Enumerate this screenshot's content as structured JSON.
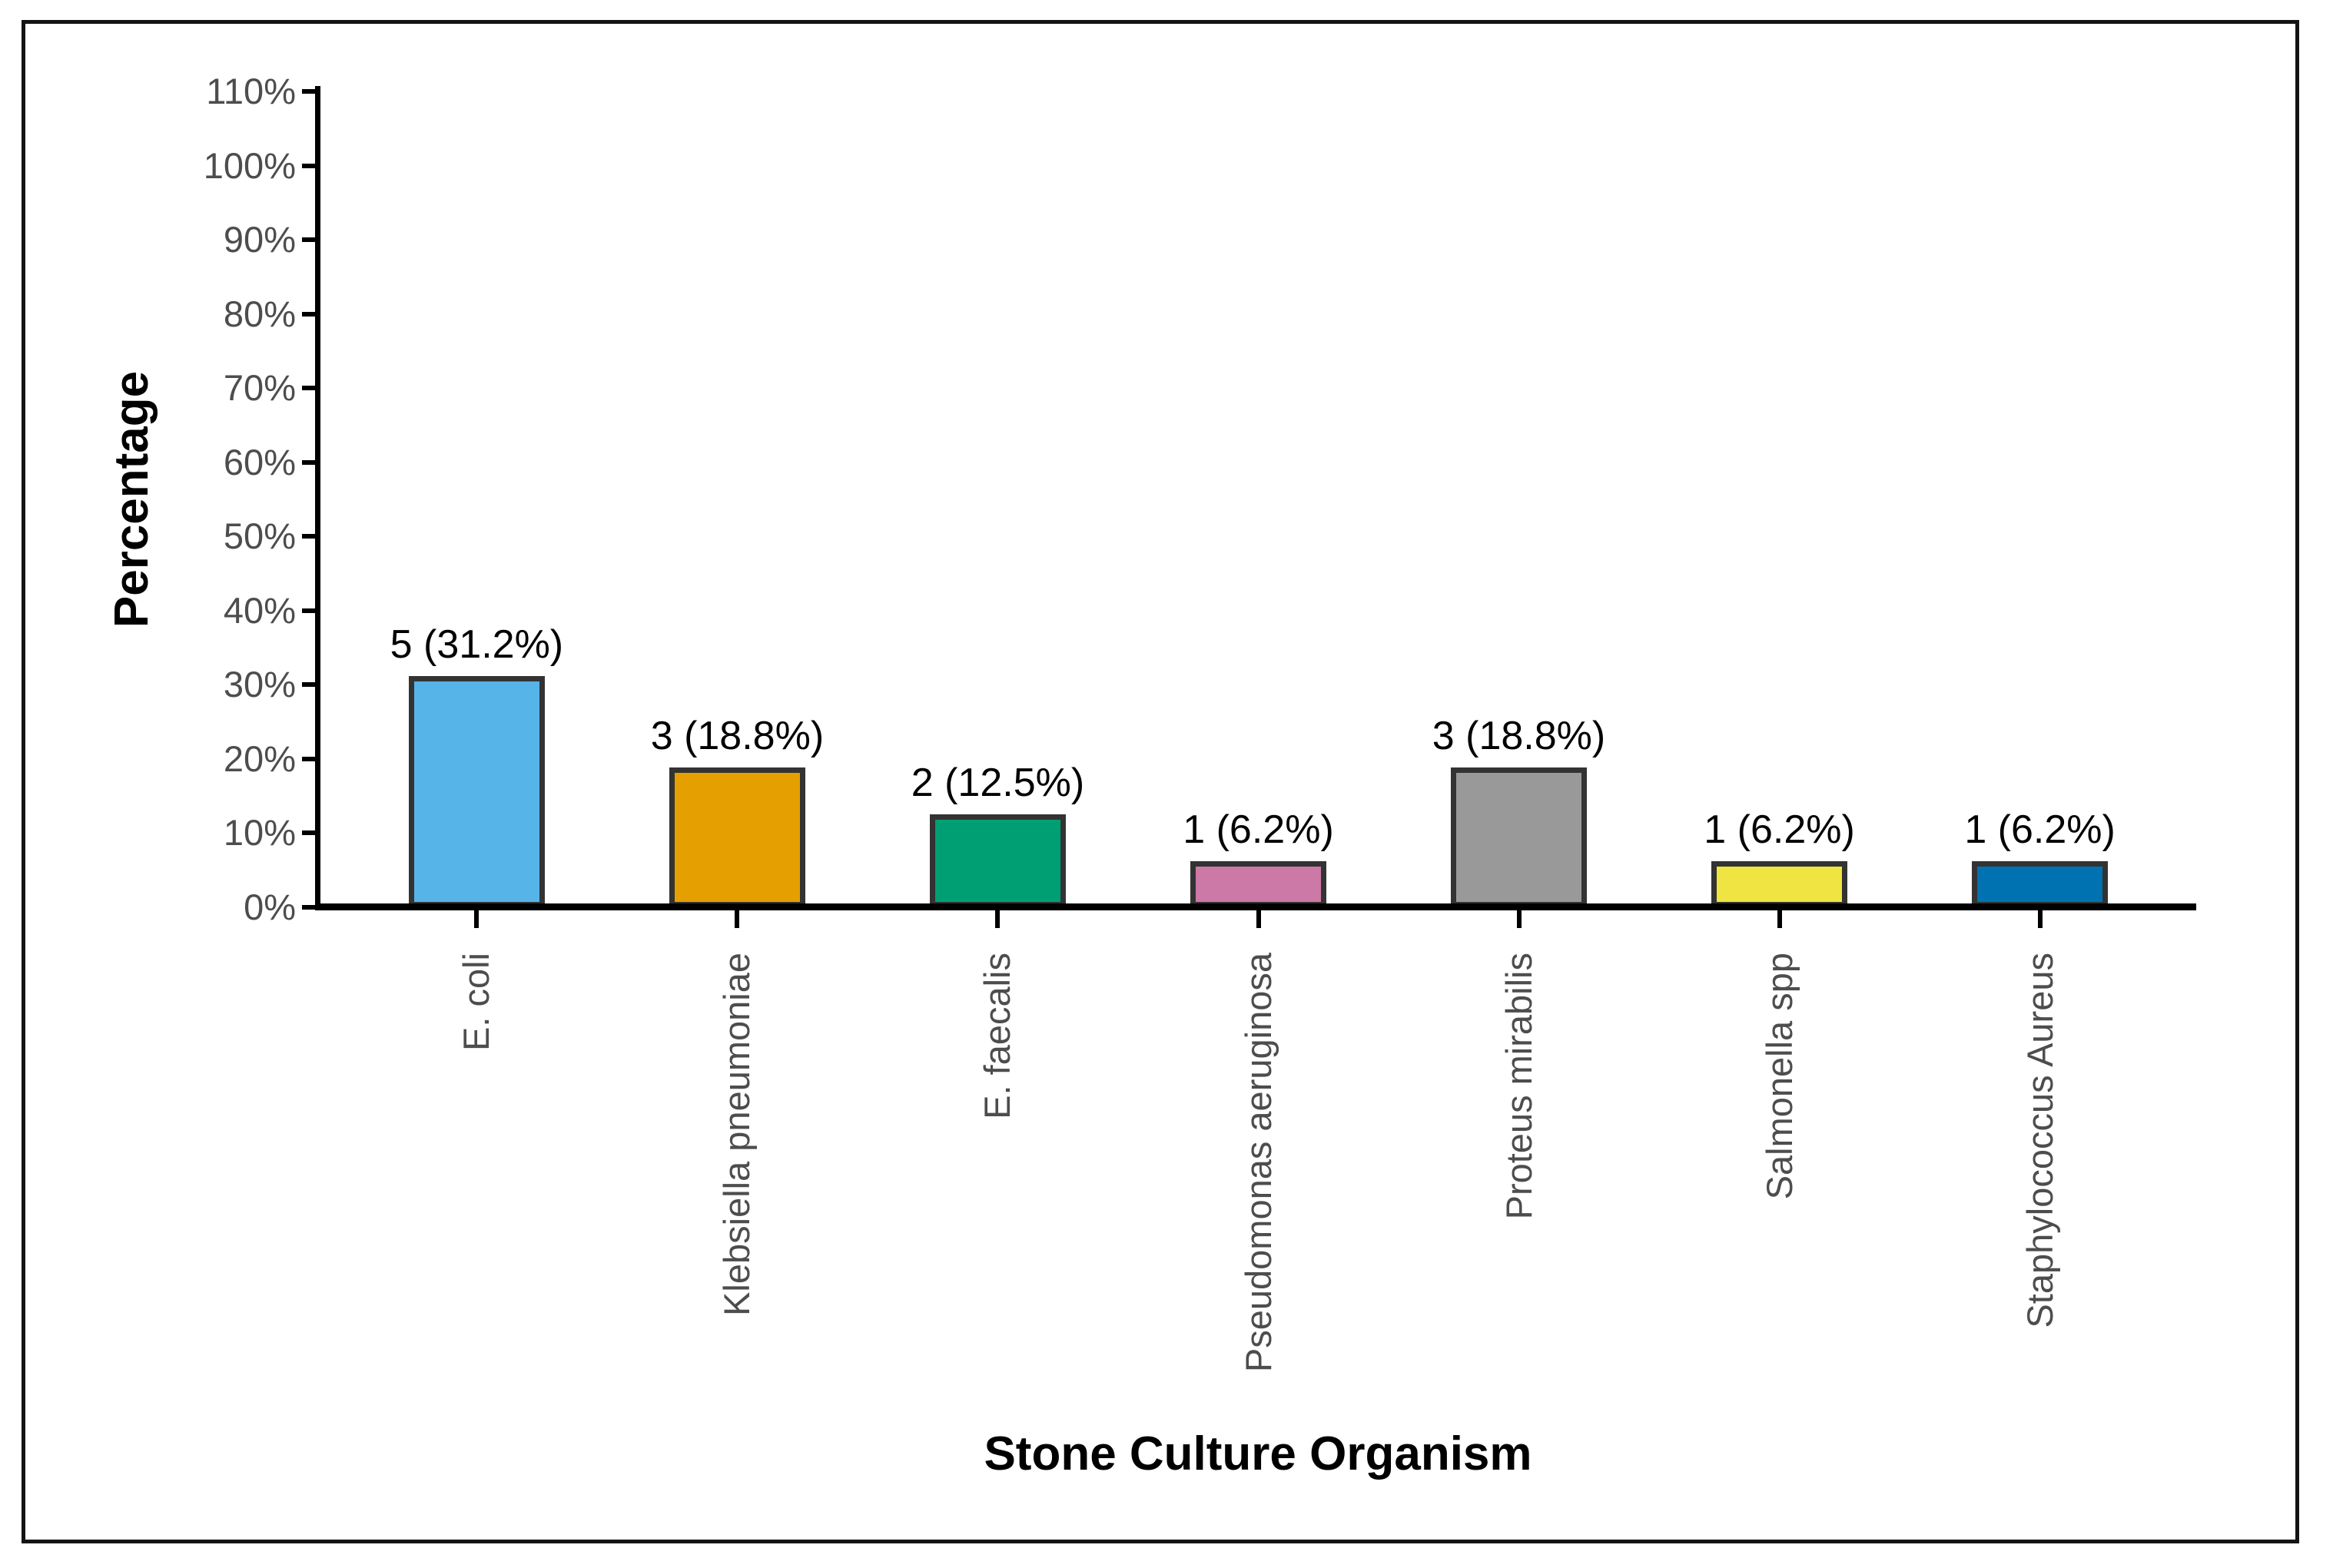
{
  "chart_data": {
    "type": "bar",
    "title": "",
    "xlabel": "Stone Culture Organism",
    "ylabel": "Percentage",
    "categories": [
      "E. coli",
      "Klebsiella pneumoniae",
      "E. faecalis",
      "Pseudomonas aeruginosa",
      "Proteus mirabilis",
      "Salmonella spp",
      "Staphylococcus Aureus"
    ],
    "counts": [
      5,
      3,
      2,
      1,
      3,
      1,
      1
    ],
    "values": [
      31.2,
      18.8,
      12.5,
      6.2,
      18.8,
      6.2,
      6.2
    ],
    "bar_labels": [
      "5 (31.2%)",
      "3 (18.8%)",
      "2 (12.5%)",
      "1 (6.2%)",
      "3 (18.8%)",
      "1 (6.2%)",
      "1 (6.2%)"
    ],
    "bar_colors": [
      "#56B4E9",
      "#E69F00",
      "#009E73",
      "#CC79A7",
      "#999999",
      "#F0E442",
      "#0072B2"
    ],
    "bar_border_color": "#333333",
    "axis_color": "#000000",
    "tick_label_color": "#4d4d4d",
    "ylim": [
      0,
      110
    ],
    "yticks": [
      0,
      10,
      20,
      30,
      40,
      50,
      60,
      70,
      80,
      90,
      100,
      110
    ],
    "ytick_labels": [
      "0%",
      "10%",
      "20%",
      "30%",
      "40%",
      "50%",
      "60%",
      "70%",
      "80%",
      "90%",
      "100%",
      "110%"
    ],
    "grid": false,
    "legend": "none"
  }
}
